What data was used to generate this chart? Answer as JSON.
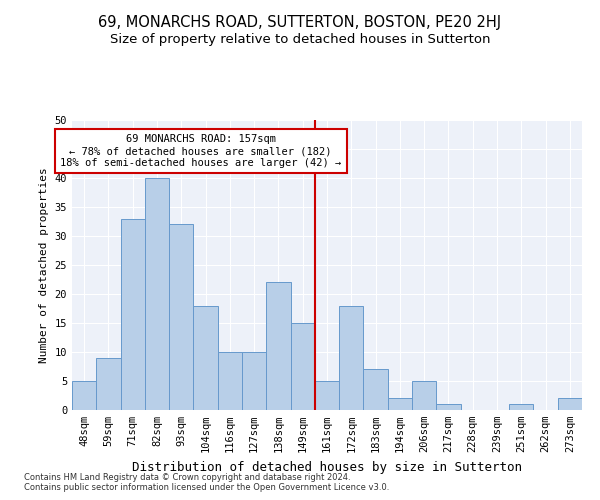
{
  "title1": "69, MONARCHS ROAD, SUTTERTON, BOSTON, PE20 2HJ",
  "title2": "Size of property relative to detached houses in Sutterton",
  "xlabel": "Distribution of detached houses by size in Sutterton",
  "ylabel": "Number of detached properties",
  "categories": [
    "48sqm",
    "59sqm",
    "71sqm",
    "82sqm",
    "93sqm",
    "104sqm",
    "116sqm",
    "127sqm",
    "138sqm",
    "149sqm",
    "161sqm",
    "172sqm",
    "183sqm",
    "194sqm",
    "206sqm",
    "217sqm",
    "228sqm",
    "239sqm",
    "251sqm",
    "262sqm",
    "273sqm"
  ],
  "values": [
    5,
    9,
    33,
    40,
    32,
    18,
    10,
    10,
    22,
    15,
    5,
    18,
    7,
    2,
    5,
    1,
    0,
    0,
    1,
    0,
    2
  ],
  "bar_color": "#b8cfe8",
  "bar_edge_color": "#6699cc",
  "annotation_title": "69 MONARCHS ROAD: 157sqm",
  "annotation_line1": "← 78% of detached houses are smaller (182)",
  "annotation_line2": "18% of semi-detached houses are larger (42) →",
  "annotation_box_color": "#cc0000",
  "vline_color": "#cc0000",
  "ylim": [
    0,
    50
  ],
  "yticks": [
    0,
    5,
    10,
    15,
    20,
    25,
    30,
    35,
    40,
    45,
    50
  ],
  "footer1": "Contains HM Land Registry data © Crown copyright and database right 2024.",
  "footer2": "Contains public sector information licensed under the Open Government Licence v3.0.",
  "bg_color": "#edf1f9",
  "title1_fontsize": 10.5,
  "title2_fontsize": 9.5,
  "xlabel_fontsize": 9,
  "ylabel_fontsize": 8,
  "tick_fontsize": 7.5,
  "annotation_fontsize": 7.5,
  "footer_fontsize": 6
}
